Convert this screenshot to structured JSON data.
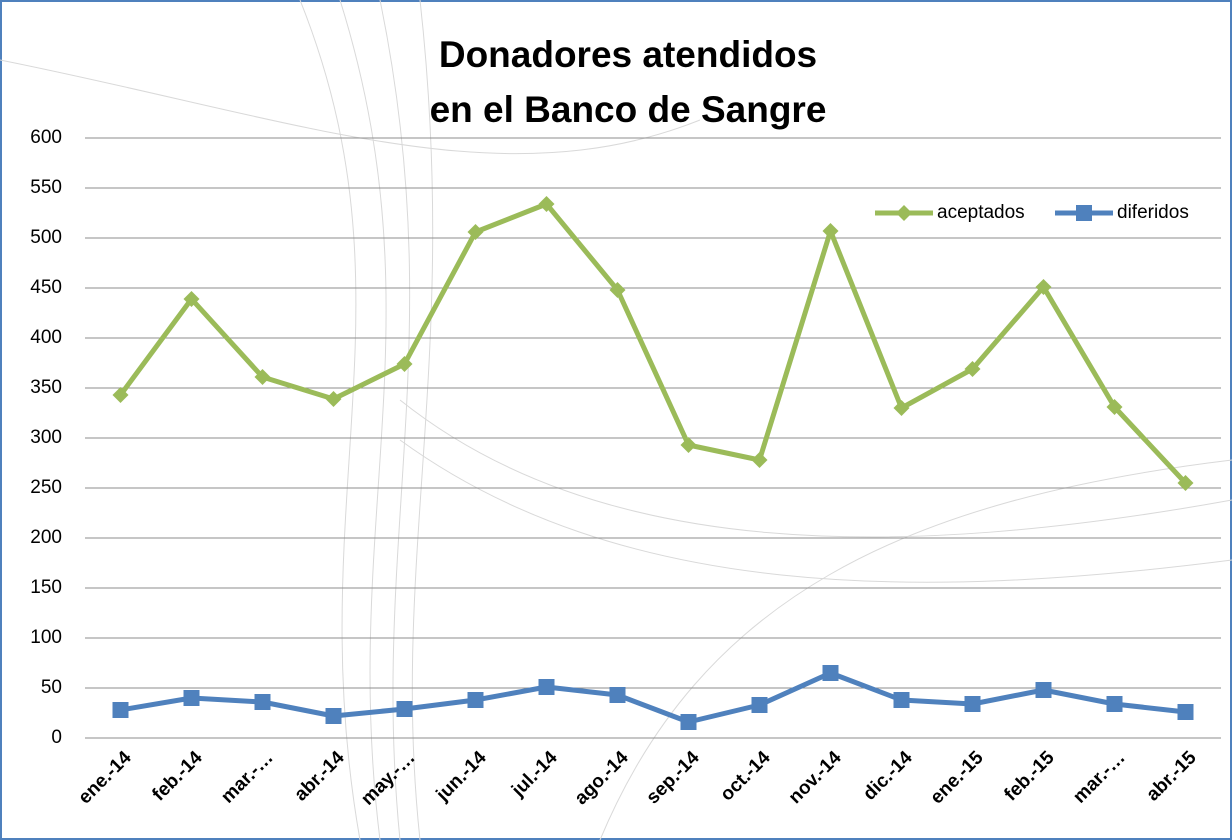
{
  "chart_data": {
    "type": "line",
    "title": [
      "Donadores atendidos",
      "en el Banco de Sangre"
    ],
    "categories": [
      "ene.-14",
      "feb.-14",
      "mar.-…",
      "abr.-14",
      "may.-…",
      "jun.-14",
      "jul.-14",
      "ago.-14",
      "sep.-14",
      "oct.-14",
      "nov.-14",
      "dic.-14",
      "ene.-15",
      "feb.-15",
      "mar.-…",
      "abr.-15"
    ],
    "series": [
      {
        "name": "aceptados",
        "color": "#9bbb59",
        "marker": "diamond",
        "values": [
          343,
          439,
          361,
          339,
          374,
          506,
          534,
          448,
          293,
          278,
          507,
          330,
          369,
          451,
          331,
          255
        ]
      },
      {
        "name": "diferidos",
        "color": "#4f81bd",
        "marker": "square",
        "values": [
          28,
          40,
          36,
          22,
          29,
          38,
          51,
          43,
          16,
          33,
          65,
          38,
          34,
          48,
          34,
          26
        ]
      }
    ],
    "ylim": [
      0,
      600
    ],
    "yticks": [
      0,
      50,
      100,
      150,
      200,
      250,
      300,
      350,
      400,
      450,
      500,
      550,
      600
    ],
    "grid": true,
    "legend": "top-right"
  }
}
